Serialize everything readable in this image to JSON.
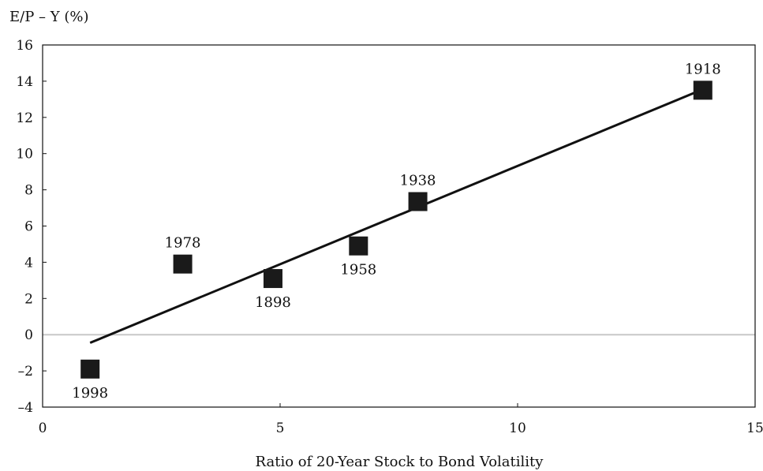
{
  "chart_data": {
    "type": "scatter",
    "ylabel": "E/P – Y (%)",
    "xlabel": "Ratio of 20-Year Stock to Bond Volatility",
    "xlim": [
      0,
      15
    ],
    "ylim": [
      -4,
      16
    ],
    "x_ticks": [
      0,
      5,
      10,
      15
    ],
    "y_ticks": [
      -4,
      -2,
      0,
      2,
      4,
      6,
      8,
      10,
      12,
      14,
      16
    ],
    "y_tick_labels": [
      "–4",
      "–2",
      "0",
      "2",
      "4",
      "6",
      "8",
      "10",
      "12",
      "14",
      "16"
    ],
    "grid": false,
    "zero_line": true,
    "points": [
      {
        "label": "1998",
        "x": 1.0,
        "y": -1.9,
        "label_position": "below"
      },
      {
        "label": "1978",
        "x": 2.95,
        "y": 3.9,
        "label_position": "above"
      },
      {
        "label": "1898",
        "x": 4.85,
        "y": 3.1,
        "label_position": "below"
      },
      {
        "label": "1958",
        "x": 6.65,
        "y": 4.9,
        "label_position": "below"
      },
      {
        "label": "1938",
        "x": 7.9,
        "y": 7.35,
        "label_position": "above"
      },
      {
        "label": "1918",
        "x": 13.9,
        "y": 13.5,
        "label_position": "above"
      }
    ],
    "fit_line": {
      "x": [
        1.0,
        13.9
      ],
      "y": [
        -0.45,
        13.55
      ]
    },
    "colors": {
      "marker": "#1a1a1a",
      "line": "#111111",
      "zero_line": "#c8c8c8",
      "frame": "#111111"
    }
  }
}
